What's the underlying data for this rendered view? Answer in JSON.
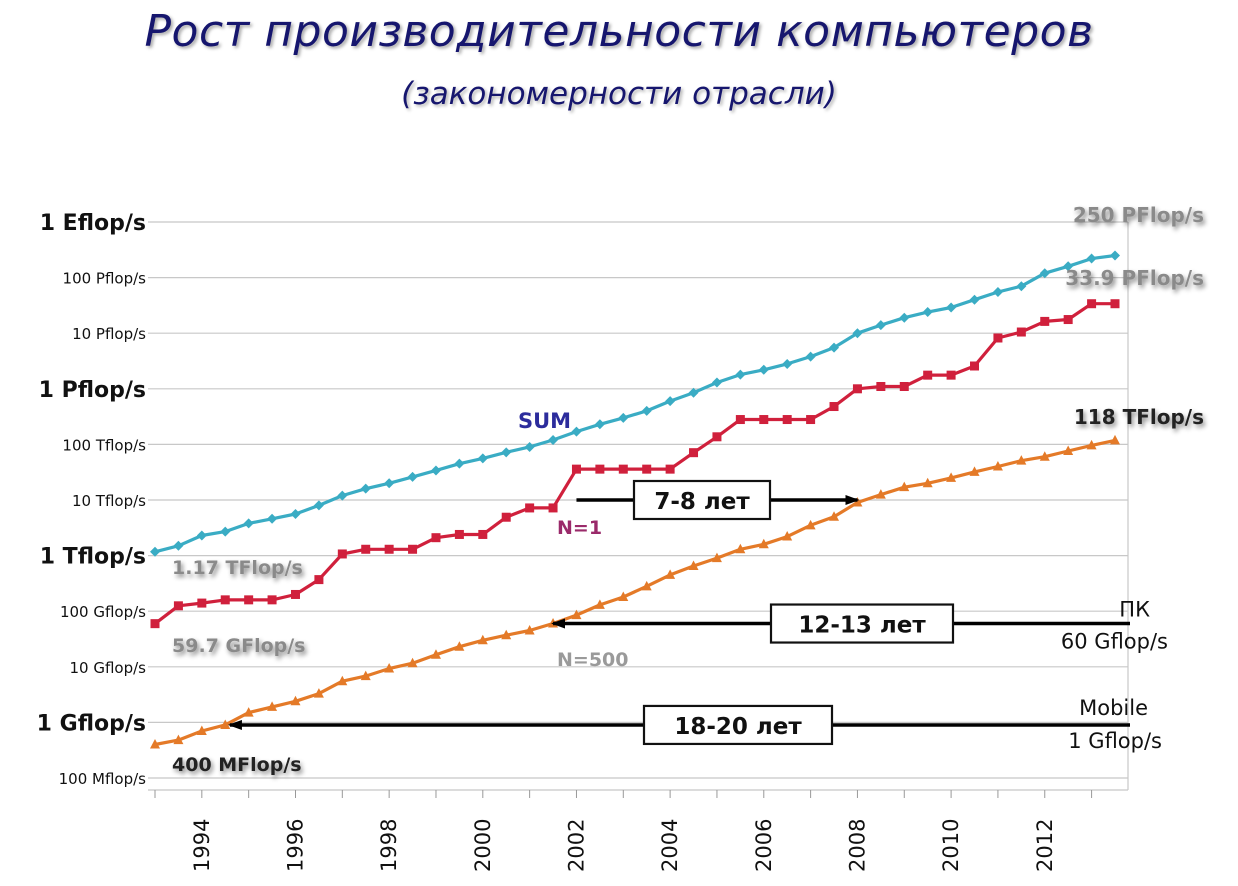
{
  "header": {
    "title": "Рост производительности компьютеров",
    "subtitle": "(закономерности отрасли)"
  },
  "colors": {
    "sum": "#3aacc4",
    "n1": "#d0203c",
    "n500": "#e47a28",
    "title": "#16166e",
    "grid": "#c8c8c8",
    "arrow": "#000000"
  },
  "chart_data": {
    "type": "line",
    "title": "Рост производительности компьютеров",
    "subtitle": "(закономерности отрасли)",
    "y_scale": "log",
    "y_unit": "flop/s",
    "ylim": [
      100000000,
      1000000000000000000
    ],
    "xlim": [
      1993,
      2013.8
    ],
    "y_ticks": [
      {
        "value": 1e+18,
        "label": "1 Eflop/s",
        "major": true
      },
      {
        "value": 1e+17,
        "label": "100 Pflop/s",
        "major": false
      },
      {
        "value": 1e+16,
        "label": "10 Pflop/s",
        "major": false
      },
      {
        "value": 1000000000000000.0,
        "label": "1 Pflop/s",
        "major": true
      },
      {
        "value": 100000000000000.0,
        "label": "100 Tflop/s",
        "major": false
      },
      {
        "value": 10000000000000.0,
        "label": "10 Tflop/s",
        "major": false
      },
      {
        "value": 1000000000000.0,
        "label": "1 Tflop/s",
        "major": true
      },
      {
        "value": 100000000000.0,
        "label": "100 Gflop/s",
        "major": false
      },
      {
        "value": 10000000000.0,
        "label": "10 Gflop/s",
        "major": false
      },
      {
        "value": 1000000000.0,
        "label": "1 Gflop/s",
        "major": true
      },
      {
        "value": 100000000.0,
        "label": "100 Mflop/s",
        "major": false
      }
    ],
    "x_ticks": [
      1994,
      1996,
      1998,
      2000,
      2002,
      2004,
      2006,
      2008,
      2010,
      2012
    ],
    "grid": true,
    "series": [
      {
        "name": "SUM",
        "marker": "diamond",
        "points": [
          [
            1993.0,
            1170000000000.0
          ],
          [
            1993.5,
            1500000000000.0
          ],
          [
            1994.0,
            2300000000000.0
          ],
          [
            1994.5,
            2700000000000.0
          ],
          [
            1995.0,
            3800000000000.0
          ],
          [
            1995.5,
            4600000000000.0
          ],
          [
            1996.0,
            5600000000000.0
          ],
          [
            1996.5,
            8000000000000.0
          ],
          [
            1997.0,
            12000000000000.0
          ],
          [
            1997.5,
            16000000000000.0
          ],
          [
            1998.0,
            20000000000000.0
          ],
          [
            1998.5,
            26000000000000.0
          ],
          [
            1999.0,
            34000000000000.0
          ],
          [
            1999.5,
            45000000000000.0
          ],
          [
            2000.0,
            56000000000000.0
          ],
          [
            2000.5,
            72000000000000.0
          ],
          [
            2001.0,
            90000000000000.0
          ],
          [
            2001.5,
            120000000000000.0
          ],
          [
            2002.0,
            170000000000000.0
          ],
          [
            2002.5,
            230000000000000.0
          ],
          [
            2003.0,
            300000000000000.0
          ],
          [
            2003.5,
            400000000000000.0
          ],
          [
            2004.0,
            600000000000000.0
          ],
          [
            2004.5,
            850000000000000.0
          ],
          [
            2005.0,
            1300000000000000.0
          ],
          [
            2005.5,
            1800000000000000.0
          ],
          [
            2006.0,
            2200000000000000.0
          ],
          [
            2006.5,
            2800000000000000.0
          ],
          [
            2007.0,
            3800000000000000.0
          ],
          [
            2007.5,
            5500000000000000.0
          ],
          [
            2008.0,
            1e+16
          ],
          [
            2008.5,
            1.4e+16
          ],
          [
            2009.0,
            1.9e+16
          ],
          [
            2009.5,
            2.4e+16
          ],
          [
            2010.0,
            2.9e+16
          ],
          [
            2010.5,
            4e+16
          ],
          [
            2011.0,
            5.5e+16
          ],
          [
            2011.5,
            7e+16
          ],
          [
            2012.0,
            1.2e+17
          ],
          [
            2012.5,
            1.6e+17
          ],
          [
            2013.0,
            2.2e+17
          ],
          [
            2013.5,
            2.5e+17
          ]
        ]
      },
      {
        "name": "N=1",
        "marker": "square",
        "points": [
          [
            1993.0,
            59700000000.0
          ],
          [
            1993.5,
            125000000000.0
          ],
          [
            1994.0,
            140000000000.0
          ],
          [
            1994.5,
            160000000000.0
          ],
          [
            1995.0,
            160000000000.0
          ],
          [
            1995.5,
            160000000000.0
          ],
          [
            1996.0,
            200000000000.0
          ],
          [
            1996.5,
            370000000000.0
          ],
          [
            1997.0,
            1070000000000.0
          ],
          [
            1997.5,
            1300000000000.0
          ],
          [
            1998.0,
            1300000000000.0
          ],
          [
            1998.5,
            1300000000000.0
          ],
          [
            1999.0,
            2100000000000.0
          ],
          [
            1999.5,
            2400000000000.0
          ],
          [
            2000.0,
            2400000000000.0
          ],
          [
            2000.5,
            4900000000000.0
          ],
          [
            2001.0,
            7200000000000.0
          ],
          [
            2001.5,
            7200000000000.0
          ],
          [
            2002.0,
            35900000000000.0
          ],
          [
            2002.5,
            35900000000000.0
          ],
          [
            2003.0,
            35900000000000.0
          ],
          [
            2003.5,
            35900000000000.0
          ],
          [
            2004.0,
            35900000000000.0
          ],
          [
            2004.5,
            71000000000000.0
          ],
          [
            2005.0,
            137000000000000.0
          ],
          [
            2005.5,
            280000000000000.0
          ],
          [
            2006.0,
            280000000000000.0
          ],
          [
            2006.5,
            280000000000000.0
          ],
          [
            2007.0,
            280000000000000.0
          ],
          [
            2007.5,
            480000000000000.0
          ],
          [
            2008.0,
            1000000000000000.0
          ],
          [
            2008.5,
            1100000000000000.0
          ],
          [
            2009.0,
            1100000000000000.0
          ],
          [
            2009.5,
            1760000000000000.0
          ],
          [
            2010.0,
            1760000000000000.0
          ],
          [
            2010.5,
            2570000000000000.0
          ],
          [
            2011.0,
            8200000000000000.0
          ],
          [
            2011.5,
            1.05e+16
          ],
          [
            2012.0,
            1.63e+16
          ],
          [
            2012.5,
            1.76e+16
          ],
          [
            2013.0,
            3.39e+16
          ],
          [
            2013.5,
            3.39e+16
          ]
        ]
      },
      {
        "name": "N=500",
        "marker": "triangle",
        "points": [
          [
            1993.0,
            400000000.0
          ],
          [
            1993.5,
            480000000.0
          ],
          [
            1994.0,
            700000000.0
          ],
          [
            1994.5,
            900000000.0
          ],
          [
            1995.0,
            1500000000.0
          ],
          [
            1995.5,
            1900000000.0
          ],
          [
            1996.0,
            2400000000.0
          ],
          [
            1996.5,
            3300000000.0
          ],
          [
            1997.0,
            5500000000.0
          ],
          [
            1997.5,
            6800000000.0
          ],
          [
            1998.0,
            9300000000.0
          ],
          [
            1998.5,
            11600000000.0
          ],
          [
            1999.0,
            16500000000.0
          ],
          [
            1999.5,
            23000000000.0
          ],
          [
            2000.0,
            30000000000.0
          ],
          [
            2000.5,
            37000000000.0
          ],
          [
            2001.0,
            45000000000.0
          ],
          [
            2001.5,
            60000000000.0
          ],
          [
            2002.0,
            85000000000.0
          ],
          [
            2002.5,
            130000000000.0
          ],
          [
            2003.0,
            180000000000.0
          ],
          [
            2003.5,
            280000000000.0
          ],
          [
            2004.0,
            450000000000.0
          ],
          [
            2004.5,
            650000000000.0
          ],
          [
            2005.0,
            900000000000.0
          ],
          [
            2005.5,
            1300000000000.0
          ],
          [
            2006.0,
            1600000000000.0
          ],
          [
            2006.5,
            2200000000000.0
          ],
          [
            2007.0,
            3500000000000.0
          ],
          [
            2007.5,
            5000000000000.0
          ],
          [
            2008.0,
            9000000000000.0
          ],
          [
            2008.5,
            12500000000000.0
          ],
          [
            2009.0,
            17000000000000.0
          ],
          [
            2009.5,
            20000000000000.0
          ],
          [
            2010.0,
            25000000000000.0
          ],
          [
            2010.5,
            32000000000000.0
          ],
          [
            2011.0,
            40000000000000.0
          ],
          [
            2011.5,
            51000000000000.0
          ],
          [
            2012.0,
            60000000000000.0
          ],
          [
            2012.5,
            76000000000000.0
          ],
          [
            2013.0,
            96000000000000.0
          ],
          [
            2013.5,
            118000000000000.0
          ]
        ]
      }
    ],
    "annotations": {
      "sum_label": "SUM",
      "n1_label": "N=1",
      "n500_label": "N=500",
      "sum_start": "1.17 TFlop/s",
      "n1_start": "59.7 GFlop/s",
      "n500_start": "400 MFlop/s",
      "sum_end": "250 PFlop/s",
      "n1_end": "33.9 PFlop/s",
      "n500_end": "118 TFlop/s"
    },
    "arrows": [
      {
        "box_label": "7-8 лет",
        "from_year": 2002.0,
        "to_year": 2008.0,
        "value": 10000000000000.0
      },
      {
        "box_label": "12-13 лет",
        "side_label_1": "ПК",
        "side_label_2": "60 Gflop/s",
        "from_year": 2015.0,
        "to_year": 2001.5,
        "value": 60000000000.0
      },
      {
        "box_label": "18-20 лет",
        "side_label_1": "Mobile",
        "side_label_2": "1 Gflop/s",
        "from_year": 2015.0,
        "to_year": 1994.6,
        "value": 900000000.0
      }
    ]
  }
}
